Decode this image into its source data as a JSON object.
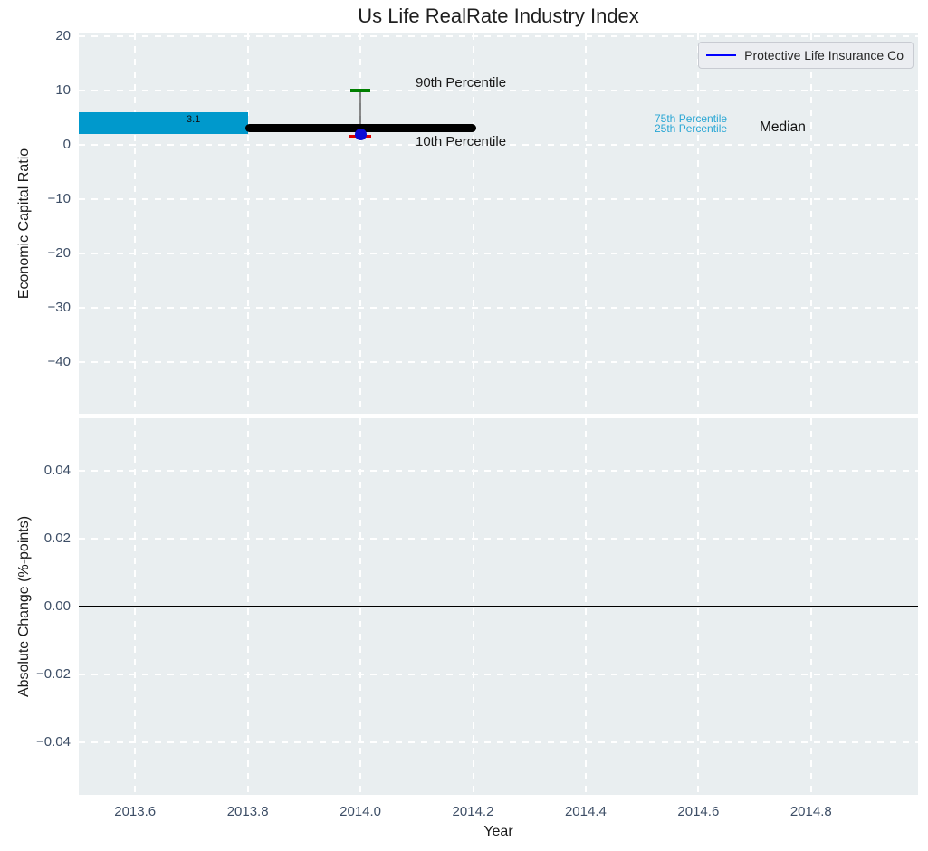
{
  "figure": {
    "title": "Us Life RealRate Industry Index"
  },
  "legend": {
    "entries": [
      {
        "label": "Protective Life Insurance Co",
        "color": "#0000ff"
      }
    ],
    "position": "upper right"
  },
  "colors": {
    "figure_bg": "#ffffff",
    "axes_bg": "#e9eef0",
    "grid": "#ffffff",
    "tick_label": "#3d4e66",
    "text": "#1a1a1a",
    "box_fill": "#0099cc",
    "median_line": "#000000",
    "whisker": "rgba(40,40,40,0.55)",
    "cap_90th": "#007f00",
    "cap_10th": "#dd0000",
    "company_dot": "#0b0bd6",
    "percentile_label": "#29a6d4",
    "zero_line": "#000000"
  },
  "chart_data": [
    {
      "type": "boxplot",
      "title": "Us Life RealRate Industry Index",
      "ylabel": "Economic Capital Ratio",
      "ylim": [
        -49.5,
        20.5
      ],
      "yticks": [
        20,
        10,
        0,
        -10,
        -20,
        -30,
        -40
      ],
      "ytick_labels": [
        "20",
        "10",
        "0",
        "−10",
        "−20",
        "−30",
        "−40"
      ],
      "xlim": [
        2013.5,
        2014.99
      ],
      "xticks": [
        2013.6,
        2013.8,
        2014.0,
        2014.2,
        2014.4,
        2014.6,
        2014.8
      ],
      "grid": true,
      "box": {
        "x": 2014.0,
        "median": 3.1,
        "p75": 6.0,
        "p25": 2.0,
        "p90": 10.0,
        "p10": 1.6,
        "median_line_halfwidth": 0.205,
        "box_halfwidth": 0.15,
        "cap_halfwidth": 0.017,
        "company": {
          "name": "Protective Life Insurance Co",
          "value": 2.0
        }
      },
      "annotations": {
        "median_value_label": "3.1",
        "p90_label": "90th Percentile",
        "p10_label": "10th Percentile",
        "p75_label": "75th Percentile",
        "p25_label": "25th Percentile",
        "median_label": "Median"
      }
    },
    {
      "type": "line",
      "ylabel": "Absolute Change (%-points)",
      "xlabel": "Year",
      "ylim": [
        -0.0555,
        0.0555
      ],
      "yticks": [
        0.04,
        0.02,
        0.0,
        -0.02,
        -0.04
      ],
      "ytick_labels": [
        "0.04",
        "0.02",
        "0.00",
        "−0.02",
        "−0.04"
      ],
      "xlim": [
        2013.5,
        2014.99
      ],
      "xticks": [
        2013.6,
        2013.8,
        2014.0,
        2014.2,
        2014.4,
        2014.6,
        2014.8
      ],
      "xtick_labels": [
        "2013.6",
        "2013.8",
        "2014.0",
        "2014.2",
        "2014.4",
        "2014.6",
        "2014.8"
      ],
      "grid": true,
      "zero_line": 0.0,
      "series": []
    }
  ]
}
